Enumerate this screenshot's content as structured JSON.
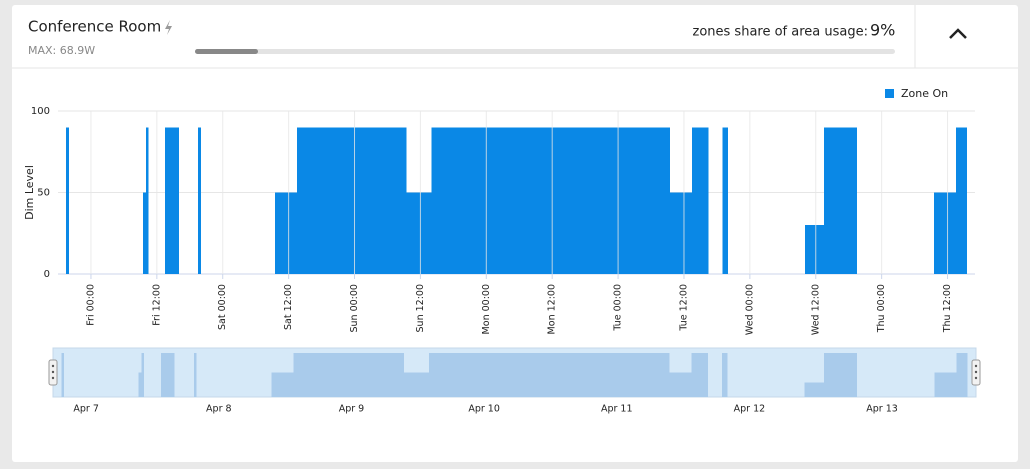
{
  "header": {
    "title": "Conference Room",
    "max": "MAX: 68.9W",
    "usage_label": "zones share of area usage:",
    "usage_value": 9,
    "usage_value_label": "9%"
  },
  "chart_data": {
    "type": "step-area",
    "y_label": "Dim Level",
    "legend": "Zone On",
    "color": "#0a88e6",
    "x": [
      -6,
      -4.5,
      -4,
      9.5,
      10,
      10.5,
      13.5,
      16,
      19.5,
      20,
      33.5,
      37.5,
      57.5,
      62,
      105.5,
      109.5,
      112.5,
      115,
      116,
      130,
      133.5,
      139.5,
      153.5,
      157.5,
      159.5
    ],
    "values": [
      0,
      90,
      0,
      50,
      90,
      0,
      90,
      0,
      90,
      0,
      50,
      90,
      50,
      90,
      50,
      90,
      0,
      90,
      0,
      30,
      90,
      0,
      50,
      90,
      0
    ],
    "xlim": [
      -6,
      161
    ],
    "ylim": [
      0,
      100
    ],
    "yticks": [
      0,
      50,
      100
    ],
    "grid": true,
    "xticks": [
      {
        "value": 0,
        "label": "Fri 00:00"
      },
      {
        "value": 12,
        "label": "Fri 12:00"
      },
      {
        "value": 24,
        "label": "Sat 00:00"
      },
      {
        "value": 36,
        "label": "Sat 12:00"
      },
      {
        "value": 48,
        "label": "Sun 00:00"
      },
      {
        "value": 60,
        "label": "Sun 12:00"
      },
      {
        "value": 72,
        "label": "Mon 00:00"
      },
      {
        "value": 84,
        "label": "Mon 12:00"
      },
      {
        "value": 96,
        "label": "Tue 00:00"
      },
      {
        "value": 108,
        "label": "Tue 12:00"
      },
      {
        "value": 120,
        "label": "Wed 00:00"
      },
      {
        "value": 132,
        "label": "Wed 12:00"
      },
      {
        "value": 144,
        "label": "Thu 00:00"
      },
      {
        "value": 156,
        "label": "Thu 12:00"
      }
    ],
    "navigator_xticks": [
      {
        "value": 0,
        "label": "Apr 7"
      },
      {
        "value": 24,
        "label": "Apr 8"
      },
      {
        "value": 48,
        "label": "Apr 9"
      },
      {
        "value": 72,
        "label": "Apr 10"
      },
      {
        "value": 96,
        "label": "Apr 11"
      },
      {
        "value": 120,
        "label": "Apr 12"
      },
      {
        "value": 144,
        "label": "Apr 13"
      }
    ]
  }
}
